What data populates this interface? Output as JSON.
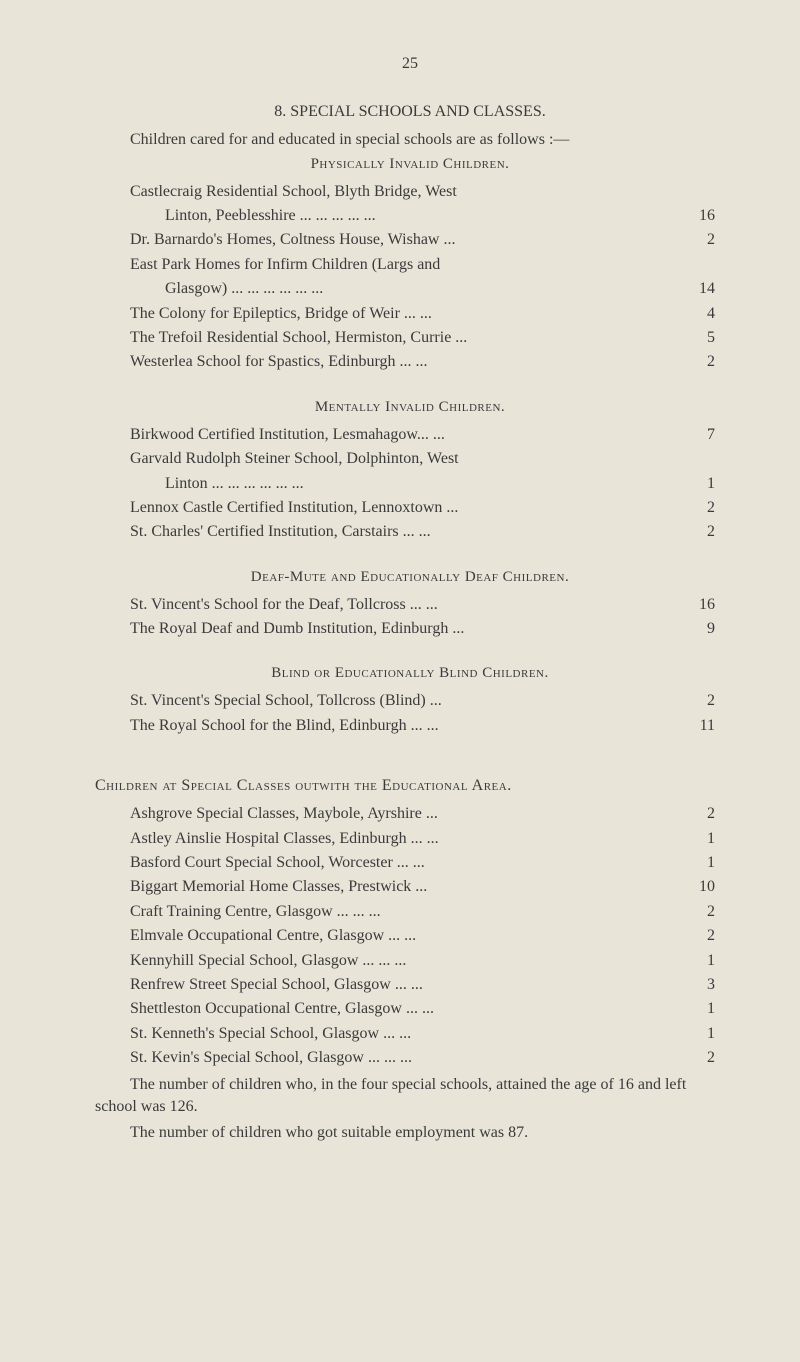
{
  "page_number": "25",
  "section": {
    "title": "8.  SPECIAL SCHOOLS AND CLASSES.",
    "intro": "Children cared for and educated in special schools are as follows :—"
  },
  "subsections": [
    {
      "title": "Physically Invalid Children.",
      "entries": [
        {
          "label_lines": [
            "Castlecraig  Residential  School,  Blyth  Bridge,  West",
            "Linton, Peeblesshire ...     ...     ...     ...     ..."
          ],
          "value": "16"
        },
        {
          "label_lines": [
            "Dr. Barnardo's Homes, Coltness House, Wishaw    ..."
          ],
          "value": "2"
        },
        {
          "label_lines": [
            "East  Park  Homes  for  Infirm  Children  (Largs  and",
            "Glasgow)        ...     ...     ...     ...     ...     ..."
          ],
          "value": "14"
        },
        {
          "label_lines": [
            "The Colony for Epileptics, Bridge of Weir  ...     ..."
          ],
          "value": "4"
        },
        {
          "label_lines": [
            "The Trefoil Residential School, Hermiston, Currie  ..."
          ],
          "value": "5"
        },
        {
          "label_lines": [
            "Westerlea School for Spastics, Edinburgh      ...     ..."
          ],
          "value": "2"
        }
      ]
    },
    {
      "title": "Mentally Invalid Children.",
      "entries": [
        {
          "label_lines": [
            "Birkwood Certified Institution, Lesmahagow...     ..."
          ],
          "value": "7"
        },
        {
          "label_lines": [
            "Garvald  Rudolph  Steiner  School,  Dolphinton,  West",
            "Linton           ...     ...     ...     ...     ...     ..."
          ],
          "value": "1"
        },
        {
          "label_lines": [
            "Lennox Castle Certified Institution, Lennoxtown    ..."
          ],
          "value": "2"
        },
        {
          "label_lines": [
            "St. Charles' Certified Institution, Carstairs   ...     ..."
          ],
          "value": "2"
        }
      ]
    },
    {
      "title": "Deaf-Mute and Educationally Deaf Children.",
      "entries": [
        {
          "label_lines": [
            "St. Vincent's School for the Deaf, Tollcross ...     ..."
          ],
          "value": "16"
        },
        {
          "label_lines": [
            "The Royal Deaf and Dumb Institution, Edinburgh ..."
          ],
          "value": "9"
        }
      ]
    },
    {
      "title": "Blind or Educationally Blind Children.",
      "entries": [
        {
          "label_lines": [
            "St. Vincent's Special School, Tollcross (Blind)        ..."
          ],
          "value": "2"
        },
        {
          "label_lines": [
            "The Royal School for the Blind, Edinburgh ...     ..."
          ],
          "value": "11"
        }
      ]
    }
  ],
  "children_section": {
    "title": "Children at Special Classes outwith the Educational Area.",
    "entries": [
      {
        "label": "Ashgrove Special Classes, Maybole, Ayrshire          ...",
        "value": "2"
      },
      {
        "label": "Astley Ainslie Hospital Classes, Edinburgh  ...     ...",
        "value": "1"
      },
      {
        "label": "Basford Court Special School, Worcester       ...     ...",
        "value": "1"
      },
      {
        "label": "Biggart Memorial Home Classes, Prestwick           ...",
        "value": "10"
      },
      {
        "label": "Craft Training Centre, Glasgow           ...     ...     ...",
        "value": "2"
      },
      {
        "label": "Elmvale Occupational Centre, Glasgow        ...     ...",
        "value": "2"
      },
      {
        "label": "Kennyhill Special School, Glasgow     ...     ...     ...",
        "value": "1"
      },
      {
        "label": "Renfrew Street Special School, Glasgow        ...     ...",
        "value": "3"
      },
      {
        "label": "Shettleston Occupational Centre, Glasgow    ...     ...",
        "value": "1"
      },
      {
        "label": "St. Kenneth's Special School, Glasgow          ...     ...",
        "value": "1"
      },
      {
        "label": "St. Kevin's Special School, Glasgow   ...     ...     ...",
        "value": "2"
      }
    ]
  },
  "footer": {
    "line1": "The number of children who, in the four special schools, attained the age of 16 and left school was 126.",
    "line2": "The number of children who got suitable employment was 87."
  }
}
